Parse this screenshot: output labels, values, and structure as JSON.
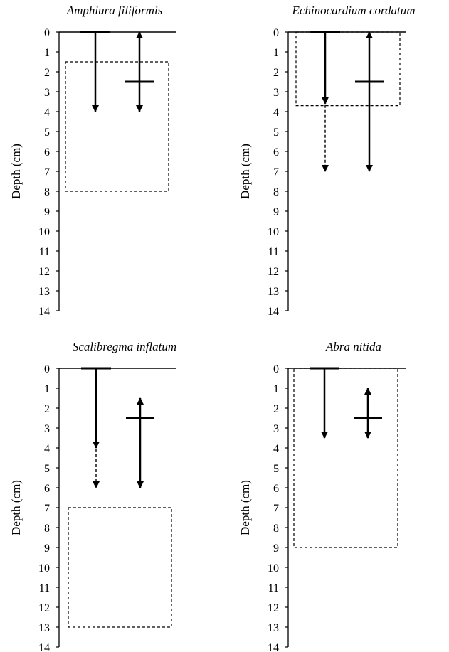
{
  "chart_data": [
    {
      "type": "depth-profile",
      "title": "Amphiura filiformis",
      "ylabel": "Depth (cm)",
      "ylim": [
        0,
        14
      ],
      "yticks": [
        0,
        1,
        2,
        3,
        4,
        5,
        6,
        7,
        8,
        9,
        10,
        11,
        12,
        13,
        14
      ],
      "surface_arrow": {
        "from": 0,
        "to_solid": 4,
        "to_dashed": null
      },
      "range_arrow": {
        "top": 0,
        "bottom": 4,
        "marker": 2.5
      },
      "dashed_box": {
        "top": 1.5,
        "bottom": 8
      }
    },
    {
      "type": "depth-profile",
      "title": "Echinocardium cordatum",
      "ylabel": "Depth (cm)",
      "ylim": [
        0,
        14
      ],
      "yticks": [
        0,
        1,
        2,
        3,
        4,
        5,
        6,
        7,
        8,
        9,
        10,
        11,
        12,
        13,
        14
      ],
      "surface_arrow": {
        "from": 0,
        "to_solid": 3.6,
        "to_dashed": 7
      },
      "range_arrow": {
        "top": 0,
        "bottom": 7,
        "marker": 2.5
      },
      "dashed_box": {
        "top": 0,
        "bottom": 3.7
      }
    },
    {
      "type": "depth-profile",
      "title": "Scalibregma inflatum",
      "ylabel": "Depth (cm)",
      "ylim": [
        0,
        14
      ],
      "yticks": [
        0,
        1,
        2,
        3,
        4,
        5,
        6,
        7,
        8,
        9,
        10,
        11,
        12,
        13,
        14
      ],
      "surface_arrow": {
        "from": 0,
        "to_solid": 4,
        "to_dashed": 6
      },
      "range_arrow": {
        "top": 1.5,
        "bottom": 6,
        "marker": 2.5
      },
      "dashed_box": {
        "top": 7,
        "bottom": 13
      }
    },
    {
      "type": "depth-profile",
      "title": "Abra nitida",
      "ylabel": "Depth (cm)",
      "ylim": [
        0,
        14
      ],
      "yticks": [
        0,
        1,
        2,
        3,
        4,
        5,
        6,
        7,
        8,
        9,
        10,
        11,
        12,
        13,
        14
      ],
      "surface_arrow": {
        "from": 0,
        "to_solid": 3.5,
        "to_dashed": null
      },
      "range_arrow": {
        "top": 1,
        "bottom": 3.5,
        "marker": 2.5
      },
      "dashed_box": {
        "top": 0,
        "bottom": 9
      }
    }
  ]
}
